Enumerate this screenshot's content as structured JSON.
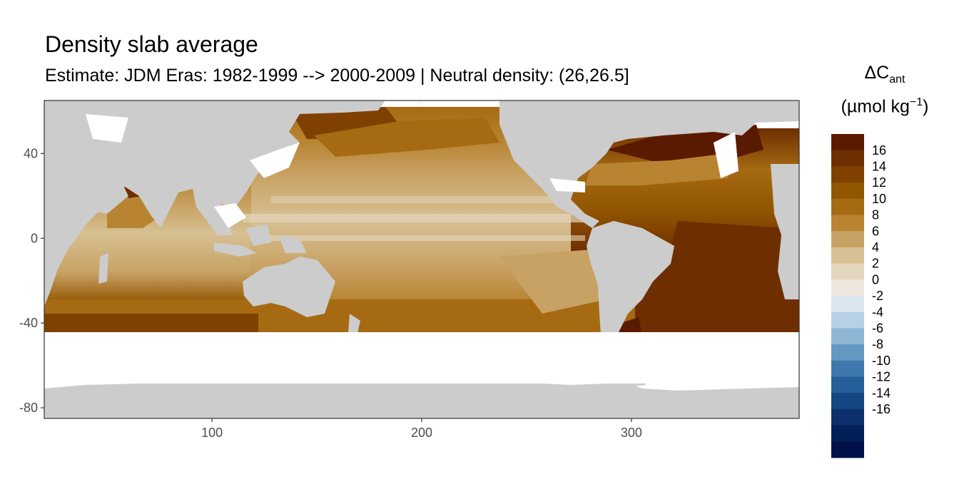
{
  "title": "Density slab average",
  "subtitle": "Estimate: JDM Eras: 1982-1999 --> 2000-2009 | Neutral density: (26,26.5]",
  "legend": {
    "symbol": "ΔC",
    "symbol_sub": "ant",
    "unit_open": "(µmol kg",
    "unit_sup": "−1",
    "unit_close": ")",
    "breaks": [
      "16",
      "14",
      "12",
      "10",
      "8",
      "6",
      "4",
      "2",
      "0",
      "-2",
      "-4",
      "-6",
      "-8",
      "-10",
      "-12",
      "-14",
      "-16"
    ],
    "colors": [
      "#5a1a00",
      "#6e2e00",
      "#7f4000",
      "#925500",
      "#a66a12",
      "#b88432",
      "#c8a264",
      "#d7c093",
      "#e3d6bd",
      "#ece6dc",
      "#dbe7ef",
      "#b7d0e3",
      "#8db6d4",
      "#6398c2",
      "#3f78ad",
      "#255e98",
      "#144682",
      "#0b306c",
      "#031f58",
      "#001048"
    ]
  },
  "chart_data": {
    "type": "heatmap",
    "title": "Density slab average",
    "subtitle": "Estimate: JDM Eras: 1982-1999 --> 2000-2009 | Neutral density: (26,26.5]",
    "x_ticks": [
      100,
      200,
      300
    ],
    "y_ticks": [
      40,
      0,
      -40,
      -80
    ],
    "xlim": [
      20,
      380
    ],
    "ylim": [
      -85,
      65
    ],
    "legend_position": "right",
    "land_color": "#cccccc",
    "nodata_color": "#ffffff",
    "grid": true
  }
}
